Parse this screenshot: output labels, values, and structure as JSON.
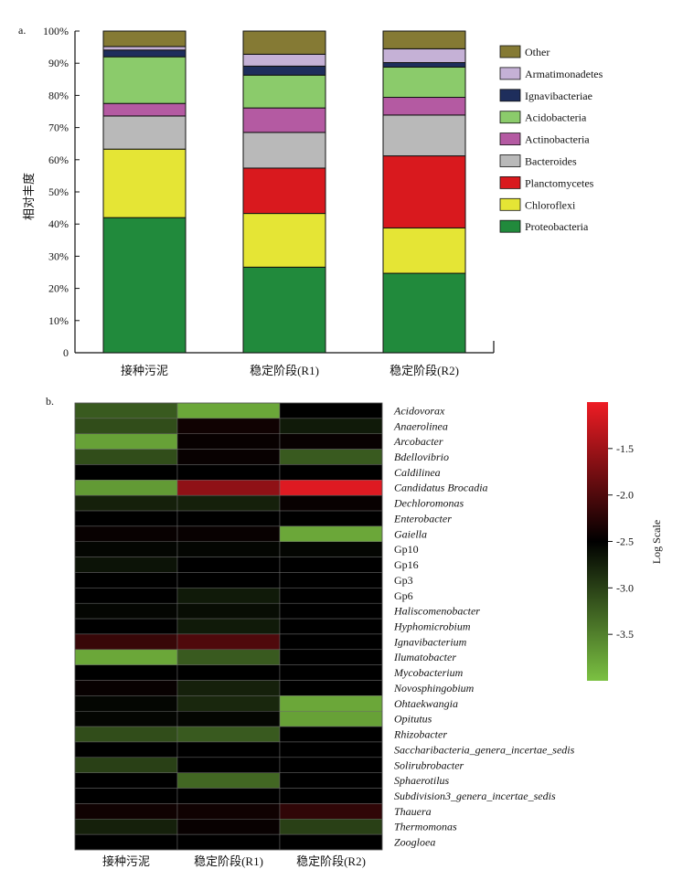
{
  "chart_data": [
    {
      "type": "bar",
      "stacked": true,
      "panel_label": "a.",
      "ylabel": "相对丰度",
      "ylim": [
        0,
        100
      ],
      "yticks": [
        "0",
        "10%",
        "20%",
        "30%",
        "40%",
        "50%",
        "60%",
        "70%",
        "80%",
        "90%",
        "100%"
      ],
      "categories": [
        "接种污泥",
        "稳定阶段(R1)",
        "稳定阶段(R2)"
      ],
      "legend_position": "right",
      "series": [
        {
          "name": "Proteobacteria",
          "color": "#218a3c",
          "values": [
            42.0,
            26.6,
            24.7
          ]
        },
        {
          "name": "Chloroflexi",
          "color": "#e5e535",
          "values": [
            21.3,
            16.7,
            14.1
          ]
        },
        {
          "name": "Planctomycetes",
          "color": "#d9191e",
          "values": [
            0.0,
            14.1,
            22.4
          ]
        },
        {
          "name": "Bacteroides",
          "color": "#b9b9b9",
          "values": [
            10.3,
            11.1,
            12.7
          ]
        },
        {
          "name": "Actinobacteria",
          "color": "#b45aa2",
          "values": [
            3.9,
            7.6,
            5.5
          ]
        },
        {
          "name": "Acidobacteria",
          "color": "#8bcb6b",
          "values": [
            14.5,
            10.2,
            9.4
          ]
        },
        {
          "name": "Ignavibacteriae",
          "color": "#1e2e5c",
          "values": [
            2.1,
            2.8,
            1.4
          ]
        },
        {
          "name": "Armatimonadetes",
          "color": "#c5b1d6",
          "values": [
            1.1,
            3.7,
            4.3
          ]
        },
        {
          "name": "Other",
          "color": "#857a34",
          "values": [
            4.8,
            7.2,
            5.5
          ]
        }
      ]
    },
    {
      "type": "heatmap",
      "panel_label": "b.",
      "columns": [
        "接种污泥",
        "稳定阶段(R1)",
        "稳定阶段(R2)"
      ],
      "rows": [
        "Acidovorax",
        "Anaerolinea",
        "Arcobacter",
        "Bdellovibrio",
        "Caldilinea",
        "Candidatus Brocadia",
        "Dechloromonas",
        "Enterobacter",
        "Gaiella",
        "Gp10",
        "Gp16",
        "Gp3",
        "Gp6",
        "Haliscomenobacter",
        "Hyphomicrobium",
        "Ignavibacterium",
        "Ilumatobacter",
        "Mycobacterium",
        "Novosphingobium",
        "Ohtaekwangia",
        "Opitutus",
        "Rhizobacter",
        "Saccharibacteria_genera_incertae_sedis",
        "Solirubrobacter",
        "Sphaerotilus",
        "Subdivision3_genera_incertae_sedis",
        "Thauera",
        "Thermomonas",
        "Zoogloea"
      ],
      "italic_rows": [
        true,
        true,
        true,
        true,
        true,
        true,
        true,
        true,
        true,
        false,
        false,
        false,
        false,
        true,
        true,
        true,
        true,
        true,
        true,
        true,
        true,
        true,
        true,
        true,
        true,
        true,
        true,
        true,
        true
      ],
      "values": [
        [
          -3.2,
          -3.8,
          -2.5
        ],
        [
          -3.1,
          -2.4,
          -2.7
        ],
        [
          -3.75,
          -2.45,
          -2.45
        ],
        [
          -3.1,
          -2.45,
          -3.2
        ],
        [
          -2.5,
          -2.5,
          -2.5
        ],
        [
          -3.7,
          -1.6,
          -1.1
        ],
        [
          -2.75,
          -2.75,
          -2.45
        ],
        [
          -2.5,
          -2.5,
          -2.5
        ],
        [
          -2.45,
          -2.45,
          -3.8
        ],
        [
          -2.55,
          -2.55,
          -2.55
        ],
        [
          -2.65,
          -2.5,
          -2.5
        ],
        [
          -2.5,
          -2.5,
          -2.5
        ],
        [
          -2.5,
          -2.7,
          -2.5
        ],
        [
          -2.55,
          -2.6,
          -2.5
        ],
        [
          -2.5,
          -2.7,
          -2.5
        ],
        [
          -2.15,
          -2.0,
          -2.5
        ],
        [
          -3.8,
          -3.2,
          -2.5
        ],
        [
          -2.5,
          -2.5,
          -2.5
        ],
        [
          -2.45,
          -2.75,
          -2.5
        ],
        [
          -2.55,
          -2.8,
          -3.8
        ],
        [
          -2.55,
          -2.55,
          -3.75
        ],
        [
          -3.1,
          -3.2,
          -2.5
        ],
        [
          -2.5,
          -2.5,
          -2.5
        ],
        [
          -3.0,
          -2.5,
          -2.5
        ],
        [
          -2.5,
          -3.3,
          -2.5
        ],
        [
          -2.5,
          -2.5,
          -2.5
        ],
        [
          -2.4,
          -2.4,
          -2.2
        ],
        [
          -2.75,
          -2.45,
          -3.0
        ],
        [
          -2.5,
          -2.5,
          -2.5
        ]
      ],
      "colorbar": {
        "label": "Log Scale",
        "range": [
          -4.0,
          -1.0
        ],
        "ticks": [
          "-1.5",
          "-2.0",
          "-2.5",
          "-3.0",
          "-3.5"
        ],
        "tick_values": [
          -1.5,
          -2.0,
          -2.5,
          -3.0,
          -3.5
        ],
        "low_color": "#7bc142",
        "mid_color": "#000000",
        "high_color": "#ee1c24"
      }
    }
  ]
}
